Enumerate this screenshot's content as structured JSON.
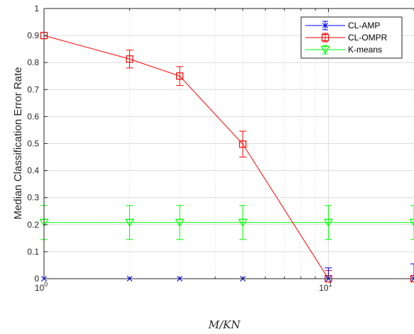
{
  "chart_data": {
    "type": "line",
    "xscale": "log",
    "xlim": [
      1,
      20
    ],
    "ylim": [
      0,
      1
    ],
    "grid": true,
    "legend_position": "top-right",
    "xlabel": "M/KN",
    "ylabel": "Median Classification Error Rate",
    "xticks": [
      {
        "value": 1,
        "base": "10",
        "exp": "0"
      },
      {
        "value": 10,
        "base": "10",
        "exp": "1"
      }
    ],
    "yticks": [
      "0",
      "0.1",
      "0.2",
      "0.3",
      "0.4",
      "0.5",
      "0.6",
      "0.7",
      "0.8",
      "0.9",
      "1"
    ],
    "series": [
      {
        "name": "CL-AMP",
        "color": "#0000ff",
        "marker": "x",
        "x": [
          1,
          2,
          3,
          5,
          10,
          20
        ],
        "y": [
          0,
          0,
          0,
          0,
          0,
          0
        ],
        "err_low": [
          0,
          0,
          0,
          0,
          0,
          0
        ],
        "err_high": [
          0,
          0,
          0,
          0,
          0.04,
          0.055
        ]
      },
      {
        "name": "CL-OMPR",
        "color": "#ff0000",
        "marker": "square",
        "x": [
          1,
          2,
          3,
          5,
          10,
          20
        ],
        "y": [
          0.9,
          0.813,
          0.75,
          0.498,
          0,
          0
        ],
        "err_low": [
          0,
          0.033,
          0.035,
          0.048,
          0,
          0
        ],
        "err_high": [
          0,
          0.033,
          0.035,
          0.048,
          0.03,
          0
        ]
      },
      {
        "name": "K-means",
        "color": "#00ff00",
        "marker": "triangle-down",
        "x": [
          1,
          2,
          3,
          5,
          10,
          20
        ],
        "y": [
          0.208,
          0.208,
          0.208,
          0.208,
          0.208,
          0.208
        ],
        "err_low": [
          0.063,
          0.063,
          0.063,
          0.063,
          0.063,
          0.063
        ],
        "err_high": [
          0.063,
          0.063,
          0.063,
          0.063,
          0.063,
          0.063
        ]
      }
    ]
  }
}
